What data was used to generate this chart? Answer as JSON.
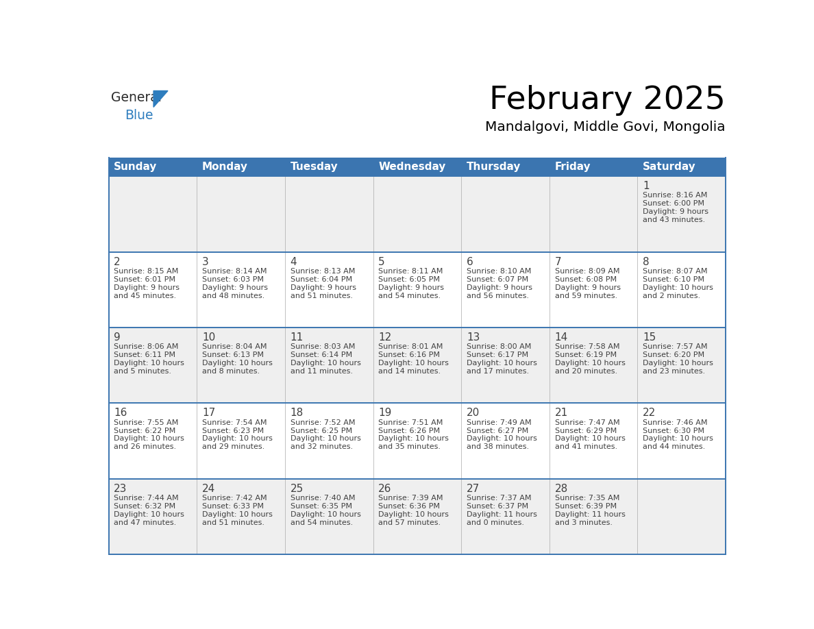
{
  "title": "February 2025",
  "subtitle": "Mandalgovi, Middle Govi, Mongolia",
  "header_color": "#3B75B0",
  "header_text_color": "#FFFFFF",
  "cell_bg_even": "#EFEFEF",
  "cell_bg_odd": "#FFFFFF",
  "border_color": "#3B75B0",
  "text_color": "#404040",
  "day_number_color": "#404040",
  "logo_general_color": "#2B2B2B",
  "logo_blue_color": "#2E7DBE",
  "logo_triangle_color": "#2E7DBE",
  "days_of_week": [
    "Sunday",
    "Monday",
    "Tuesday",
    "Wednesday",
    "Thursday",
    "Friday",
    "Saturday"
  ],
  "calendar_data": [
    [
      {
        "day": "",
        "lines": []
      },
      {
        "day": "",
        "lines": []
      },
      {
        "day": "",
        "lines": []
      },
      {
        "day": "",
        "lines": []
      },
      {
        "day": "",
        "lines": []
      },
      {
        "day": "",
        "lines": []
      },
      {
        "day": "1",
        "lines": [
          "Sunrise: 8:16 AM",
          "Sunset: 6:00 PM",
          "Daylight: 9 hours",
          "and 43 minutes."
        ]
      }
    ],
    [
      {
        "day": "2",
        "lines": [
          "Sunrise: 8:15 AM",
          "Sunset: 6:01 PM",
          "Daylight: 9 hours",
          "and 45 minutes."
        ]
      },
      {
        "day": "3",
        "lines": [
          "Sunrise: 8:14 AM",
          "Sunset: 6:03 PM",
          "Daylight: 9 hours",
          "and 48 minutes."
        ]
      },
      {
        "day": "4",
        "lines": [
          "Sunrise: 8:13 AM",
          "Sunset: 6:04 PM",
          "Daylight: 9 hours",
          "and 51 minutes."
        ]
      },
      {
        "day": "5",
        "lines": [
          "Sunrise: 8:11 AM",
          "Sunset: 6:05 PM",
          "Daylight: 9 hours",
          "and 54 minutes."
        ]
      },
      {
        "day": "6",
        "lines": [
          "Sunrise: 8:10 AM",
          "Sunset: 6:07 PM",
          "Daylight: 9 hours",
          "and 56 minutes."
        ]
      },
      {
        "day": "7",
        "lines": [
          "Sunrise: 8:09 AM",
          "Sunset: 6:08 PM",
          "Daylight: 9 hours",
          "and 59 minutes."
        ]
      },
      {
        "day": "8",
        "lines": [
          "Sunrise: 8:07 AM",
          "Sunset: 6:10 PM",
          "Daylight: 10 hours",
          "and 2 minutes."
        ]
      }
    ],
    [
      {
        "day": "9",
        "lines": [
          "Sunrise: 8:06 AM",
          "Sunset: 6:11 PM",
          "Daylight: 10 hours",
          "and 5 minutes."
        ]
      },
      {
        "day": "10",
        "lines": [
          "Sunrise: 8:04 AM",
          "Sunset: 6:13 PM",
          "Daylight: 10 hours",
          "and 8 minutes."
        ]
      },
      {
        "day": "11",
        "lines": [
          "Sunrise: 8:03 AM",
          "Sunset: 6:14 PM",
          "Daylight: 10 hours",
          "and 11 minutes."
        ]
      },
      {
        "day": "12",
        "lines": [
          "Sunrise: 8:01 AM",
          "Sunset: 6:16 PM",
          "Daylight: 10 hours",
          "and 14 minutes."
        ]
      },
      {
        "day": "13",
        "lines": [
          "Sunrise: 8:00 AM",
          "Sunset: 6:17 PM",
          "Daylight: 10 hours",
          "and 17 minutes."
        ]
      },
      {
        "day": "14",
        "lines": [
          "Sunrise: 7:58 AM",
          "Sunset: 6:19 PM",
          "Daylight: 10 hours",
          "and 20 minutes."
        ]
      },
      {
        "day": "15",
        "lines": [
          "Sunrise: 7:57 AM",
          "Sunset: 6:20 PM",
          "Daylight: 10 hours",
          "and 23 minutes."
        ]
      }
    ],
    [
      {
        "day": "16",
        "lines": [
          "Sunrise: 7:55 AM",
          "Sunset: 6:22 PM",
          "Daylight: 10 hours",
          "and 26 minutes."
        ]
      },
      {
        "day": "17",
        "lines": [
          "Sunrise: 7:54 AM",
          "Sunset: 6:23 PM",
          "Daylight: 10 hours",
          "and 29 minutes."
        ]
      },
      {
        "day": "18",
        "lines": [
          "Sunrise: 7:52 AM",
          "Sunset: 6:25 PM",
          "Daylight: 10 hours",
          "and 32 minutes."
        ]
      },
      {
        "day": "19",
        "lines": [
          "Sunrise: 7:51 AM",
          "Sunset: 6:26 PM",
          "Daylight: 10 hours",
          "and 35 minutes."
        ]
      },
      {
        "day": "20",
        "lines": [
          "Sunrise: 7:49 AM",
          "Sunset: 6:27 PM",
          "Daylight: 10 hours",
          "and 38 minutes."
        ]
      },
      {
        "day": "21",
        "lines": [
          "Sunrise: 7:47 AM",
          "Sunset: 6:29 PM",
          "Daylight: 10 hours",
          "and 41 minutes."
        ]
      },
      {
        "day": "22",
        "lines": [
          "Sunrise: 7:46 AM",
          "Sunset: 6:30 PM",
          "Daylight: 10 hours",
          "and 44 minutes."
        ]
      }
    ],
    [
      {
        "day": "23",
        "lines": [
          "Sunrise: 7:44 AM",
          "Sunset: 6:32 PM",
          "Daylight: 10 hours",
          "and 47 minutes."
        ]
      },
      {
        "day": "24",
        "lines": [
          "Sunrise: 7:42 AM",
          "Sunset: 6:33 PM",
          "Daylight: 10 hours",
          "and 51 minutes."
        ]
      },
      {
        "day": "25",
        "lines": [
          "Sunrise: 7:40 AM",
          "Sunset: 6:35 PM",
          "Daylight: 10 hours",
          "and 54 minutes."
        ]
      },
      {
        "day": "26",
        "lines": [
          "Sunrise: 7:39 AM",
          "Sunset: 6:36 PM",
          "Daylight: 10 hours",
          "and 57 minutes."
        ]
      },
      {
        "day": "27",
        "lines": [
          "Sunrise: 7:37 AM",
          "Sunset: 6:37 PM",
          "Daylight: 11 hours",
          "and 0 minutes."
        ]
      },
      {
        "day": "28",
        "lines": [
          "Sunrise: 7:35 AM",
          "Sunset: 6:39 PM",
          "Daylight: 11 hours",
          "and 3 minutes."
        ]
      },
      {
        "day": "",
        "lines": []
      }
    ]
  ]
}
